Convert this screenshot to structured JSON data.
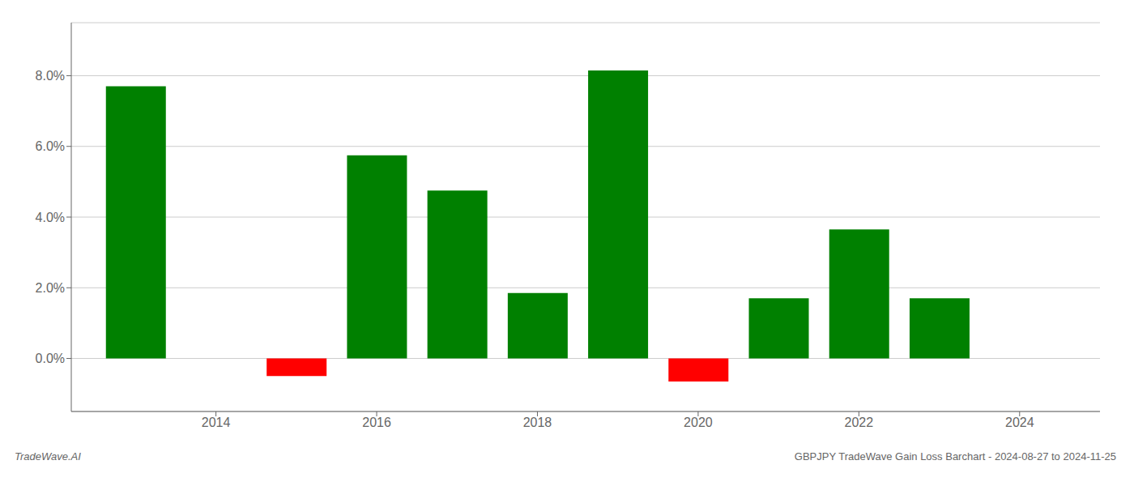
{
  "chart_data": {
    "type": "bar",
    "title": "GBPJPY TradeWave Gain Loss Barchart - 2024-08-27 to 2024-11-25",
    "annotations": [
      {
        "text": "TradeWave.AI"
      }
    ],
    "x": [
      2013,
      2015,
      2016,
      2017,
      2018,
      2019,
      2020,
      2021,
      2022,
      2023
    ],
    "values": [
      0.077,
      -0.005,
      0.0575,
      0.0475,
      0.0185,
      0.0815,
      -0.0065,
      0.017,
      0.0365,
      0.017
    ],
    "colors": [
      "#008000",
      "#ff0000",
      "#008000",
      "#008000",
      "#008000",
      "#008000",
      "#ff0000",
      "#008000",
      "#008000",
      "#008000"
    ],
    "xlim": [
      2012.2,
      2025.0
    ],
    "xticks": [
      2014,
      2016,
      2018,
      2020,
      2022,
      2024
    ],
    "ylim": [
      -0.015,
      0.095
    ],
    "yticks": [
      {
        "value": 0.0,
        "label": "0.0%"
      },
      {
        "value": 0.02,
        "label": "2.0%"
      },
      {
        "value": 0.04,
        "label": "4.0%"
      },
      {
        "value": 0.06,
        "label": "6.0%"
      },
      {
        "value": 0.08,
        "label": "8.0%"
      }
    ],
    "grid": "y"
  }
}
